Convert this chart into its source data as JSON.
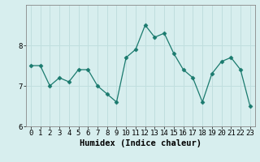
{
  "x": [
    0,
    1,
    2,
    3,
    4,
    5,
    6,
    7,
    8,
    9,
    10,
    11,
    12,
    13,
    14,
    15,
    16,
    17,
    18,
    19,
    20,
    21,
    22,
    23
  ],
  "y": [
    7.5,
    7.5,
    7.0,
    7.2,
    7.1,
    7.4,
    7.4,
    7.0,
    6.8,
    6.6,
    7.7,
    7.9,
    8.5,
    8.2,
    8.3,
    7.8,
    7.4,
    7.2,
    6.6,
    7.3,
    7.6,
    7.7,
    7.4,
    6.5
  ],
  "xlabel": "Humidex (Indice chaleur)",
  "ylabel": "",
  "ylim": [
    6.0,
    9.0
  ],
  "xlim": [
    -0.5,
    23.5
  ],
  "yticks": [
    6,
    7,
    8
  ],
  "xticks": [
    0,
    1,
    2,
    3,
    4,
    5,
    6,
    7,
    8,
    9,
    10,
    11,
    12,
    13,
    14,
    15,
    16,
    17,
    18,
    19,
    20,
    21,
    22,
    23
  ],
  "line_color": "#1a7a6e",
  "marker": "D",
  "marker_size": 2.5,
  "bg_color": "#d7eeee",
  "grid_color": "#c0dede",
  "tick_label_fontsize": 6.5,
  "xlabel_fontsize": 7.5
}
